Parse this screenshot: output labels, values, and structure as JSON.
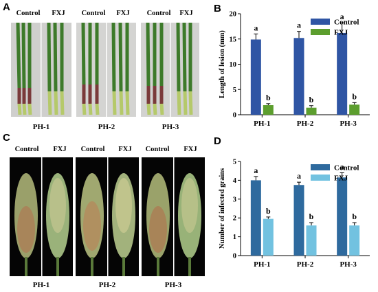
{
  "panels": {
    "a": "A",
    "b": "B",
    "c": "C",
    "d": "D"
  },
  "photos_top": {
    "labels": [
      "Control",
      "FXJ",
      "Control",
      "FXJ",
      "Control",
      "FXJ"
    ],
    "groups": [
      "PH-1",
      "PH-2",
      "PH-3"
    ]
  },
  "photos_bottom": {
    "labels": [
      "Control",
      "FXJ",
      "Control",
      "FXJ",
      "Control",
      "FXJ"
    ],
    "groups": [
      "PH-1",
      "PH-2",
      "PH-3"
    ]
  },
  "chart_data": [
    {
      "type": "bar",
      "panel": "B",
      "categories": [
        "PH-1",
        "PH-2",
        "PH-3"
      ],
      "series": [
        {
          "name": "Control",
          "values": [
            14.9,
            15.2,
            16.2
          ],
          "errors": [
            1.1,
            1.3,
            2.0
          ],
          "color": "#2f55a4",
          "letters": [
            "a",
            "a",
            "a"
          ]
        },
        {
          "name": "FXJ",
          "values": [
            1.9,
            1.4,
            2.0
          ],
          "errors": [
            0.3,
            0.4,
            0.4
          ],
          "color": "#5c9e2e",
          "letters": [
            "b",
            "b",
            "b"
          ]
        }
      ],
      "xlabel": "",
      "ylabel": "Length of lesion (mm)",
      "ylim": [
        0,
        20
      ],
      "yticks": [
        "0",
        "5",
        "10",
        "15",
        "20"
      ],
      "legend": "top-right"
    },
    {
      "type": "bar",
      "panel": "D",
      "categories": [
        "PH-1",
        "PH-2",
        "PH-3"
      ],
      "series": [
        {
          "name": "Control",
          "values": [
            4.0,
            3.75,
            4.15
          ],
          "errors": [
            0.2,
            0.15,
            0.25
          ],
          "color": "#2e6a9e",
          "letters": [
            "a",
            "a",
            "a"
          ]
        },
        {
          "name": "FXJ",
          "values": [
            1.95,
            1.6,
            1.6
          ],
          "errors": [
            0.1,
            0.15,
            0.15
          ],
          "color": "#72c2e0",
          "letters": [
            "b",
            "b",
            "b"
          ]
        }
      ],
      "xlabel": "",
      "ylabel": "Number of infected grains",
      "ylim": [
        0,
        5
      ],
      "yticks": [
        "0",
        "1",
        "2",
        "3",
        "4",
        "5"
      ],
      "legend": "top-right"
    }
  ]
}
